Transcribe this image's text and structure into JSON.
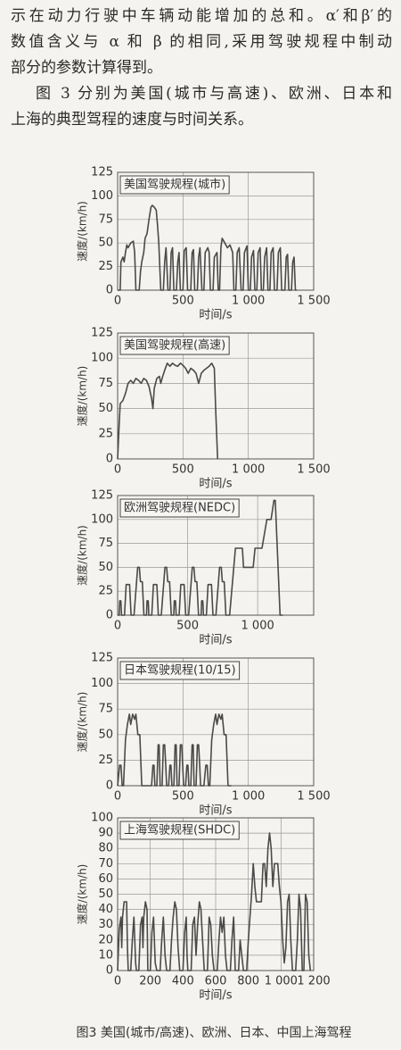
{
  "text_lines": [
    "示在动力行驶中车辆动能增加的总和。α′和β′的",
    "数值含义与 α 和 β 的相同,采用驾驶规程中制动",
    "部分的参数计算得到。",
    "图 3 分别为美国(城市与高速)、欧洲、日本和",
    "上海的典型驾程的速度与时间关系。"
  ],
  "chart_data": [
    {
      "type": "line",
      "title": "美国驾驶规程(城市)",
      "x_label": "时间/s",
      "y_label": "速度/(km/h)",
      "x": [
        0,
        20,
        25,
        40,
        50,
        60,
        70,
        80,
        100,
        120,
        130,
        140,
        165,
        175,
        185,
        200,
        210,
        225,
        240,
        255,
        265,
        280,
        295,
        305,
        315,
        330,
        350,
        360,
        370,
        385,
        400,
        410,
        420,
        430,
        450,
        460,
        470,
        480,
        500,
        510,
        525,
        535,
        560,
        570,
        580,
        590,
        610,
        620,
        630,
        645,
        660,
        670,
        690,
        700,
        710,
        730,
        740,
        760,
        770,
        780,
        790,
        800,
        820,
        840,
        860,
        880,
        890,
        905,
        915,
        930,
        945,
        960,
        970,
        990,
        1000,
        1015,
        1025,
        1040,
        1050,
        1065,
        1075,
        1090,
        1100,
        1115,
        1125,
        1140,
        1150,
        1165,
        1175,
        1190,
        1200,
        1220,
        1230,
        1245,
        1255,
        1280,
        1290,
        1300,
        1310,
        1330,
        1340,
        1350,
        1360,
        1370
      ],
      "series": [
        {
          "color": "#4a4a4a",
          "values": [
            0,
            0,
            30,
            35,
            30,
            40,
            48,
            45,
            50,
            52,
            40,
            0,
            0,
            20,
            30,
            40,
            55,
            60,
            75,
            88,
            90,
            88,
            85,
            70,
            50,
            0,
            0,
            30,
            45,
            0,
            0,
            40,
            45,
            0,
            0,
            30,
            40,
            0,
            0,
            42,
            45,
            0,
            0,
            40,
            43,
            0,
            0,
            35,
            45,
            0,
            0,
            40,
            45,
            40,
            0,
            0,
            35,
            40,
            0,
            0,
            45,
            55,
            50,
            45,
            48,
            40,
            0,
            0,
            40,
            45,
            0,
            0,
            40,
            47,
            0,
            0,
            35,
            42,
            0,
            0,
            40,
            45,
            0,
            0,
            35,
            45,
            0,
            0,
            40,
            45,
            0,
            0,
            40,
            45,
            0,
            0,
            35,
            38,
            0,
            0,
            30,
            35,
            0,
            0
          ]
        }
      ],
      "xlim": [
        0,
        1500
      ],
      "xticks": [
        0,
        500,
        {
          "value": 1000,
          "label": "1 000"
        },
        {
          "value": 1500,
          "label": "1 500"
        }
      ],
      "ylim": [
        0,
        125
      ],
      "yticks": [
        0,
        25,
        50,
        75,
        100,
        125
      ],
      "grid": true
    },
    {
      "type": "line",
      "title": "美国驾驶规程(高速)",
      "x_label": "时间/s",
      "y_label": "速度/(km/h)",
      "x": [
        0,
        10,
        20,
        40,
        60,
        80,
        100,
        120,
        140,
        160,
        180,
        200,
        220,
        240,
        260,
        270,
        280,
        300,
        320,
        330,
        340,
        360,
        380,
        400,
        420,
        440,
        460,
        480,
        500,
        520,
        540,
        560,
        580,
        600,
        620,
        640,
        660,
        680,
        700,
        720,
        740,
        750,
        765
      ],
      "series": [
        {
          "color": "#4a4a4a",
          "values": [
            0,
            30,
            55,
            58,
            65,
            75,
            78,
            75,
            80,
            78,
            75,
            80,
            78,
            72,
            60,
            50,
            70,
            80,
            82,
            75,
            80,
            88,
            95,
            92,
            95,
            93,
            92,
            95,
            93,
            90,
            85,
            90,
            88,
            85,
            75,
            85,
            88,
            90,
            92,
            95,
            90,
            50,
            0
          ]
        }
      ],
      "xlim": [
        0,
        1500
      ],
      "xticks": [
        0,
        500,
        {
          "value": 1000,
          "label": "1 000"
        },
        {
          "value": 1500,
          "label": "1 500"
        }
      ],
      "ylim": [
        0,
        125
      ],
      "yticks": [
        0,
        25,
        50,
        75,
        100,
        125
      ],
      "grid": true
    },
    {
      "type": "line",
      "title": "欧洲驾驶规程(NEDC)",
      "x_label": "时间/s",
      "y_label": "速度/(km/h)",
      "x": [
        0,
        11,
        15,
        23,
        25,
        28,
        49,
        61,
        85,
        96,
        117,
        143,
        155,
        163,
        176,
        188,
        195,
        206,
        210,
        218,
        220,
        223,
        244,
        256,
        280,
        291,
        312,
        338,
        350,
        358,
        371,
        383,
        390,
        401,
        405,
        413,
        415,
        418,
        439,
        451,
        475,
        486,
        507,
        533,
        545,
        553,
        566,
        578,
        585,
        596,
        600,
        608,
        610,
        613,
        634,
        646,
        670,
        681,
        702,
        728,
        740,
        748,
        761,
        773,
        800,
        841,
        891,
        899,
        968,
        981,
        1031,
        1066,
        1096,
        1116,
        1126,
        1160,
        1180
      ],
      "series": [
        {
          "color": "#4a4a4a",
          "values": [
            0,
            0,
            15,
            15,
            10,
            0,
            0,
            32,
            32,
            0,
            0,
            50,
            50,
            35,
            35,
            0,
            0,
            0,
            15,
            15,
            10,
            0,
            0,
            32,
            32,
            0,
            0,
            50,
            50,
            35,
            35,
            0,
            0,
            0,
            15,
            15,
            10,
            0,
            0,
            32,
            32,
            0,
            0,
            50,
            50,
            35,
            35,
            0,
            0,
            0,
            15,
            15,
            10,
            0,
            0,
            32,
            32,
            0,
            0,
            50,
            50,
            35,
            35,
            0,
            0,
            70,
            70,
            50,
            50,
            70,
            70,
            100,
            100,
            120,
            120,
            0,
            0
          ]
        }
      ],
      "xlim": [
        0,
        1400
      ],
      "xticks": [
        0,
        500,
        {
          "value": 1000,
          "label": "1 000"
        }
      ],
      "ylim": [
        0,
        125
      ],
      "yticks": [
        0,
        25,
        50,
        75,
        100,
        125
      ],
      "grid": true
    },
    {
      "type": "line",
      "title": "日本驾驶规程(10/15)",
      "x_label": "时间/s",
      "y_label": "速度/(km/h)",
      "x": [
        0,
        15,
        25,
        35,
        45,
        60,
        75,
        90,
        100,
        115,
        130,
        140,
        155,
        170,
        185,
        210,
        260,
        270,
        278,
        285,
        300,
        310,
        318,
        325,
        340,
        350,
        360,
        368,
        375,
        390,
        400,
        408,
        415,
        430,
        440,
        448,
        455,
        470,
        480,
        490,
        498,
        505,
        520,
        530,
        538,
        545,
        560,
        570,
        578,
        585,
        600,
        610,
        620,
        628,
        635,
        660,
        675,
        685,
        695,
        705,
        720,
        735,
        750,
        760,
        775,
        790,
        800,
        815,
        830,
        845,
        870
      ],
      "series": [
        {
          "color": "#4a4a4a",
          "values": [
            0,
            20,
            20,
            0,
            0,
            45,
            60,
            70,
            60,
            70,
            65,
            70,
            50,
            50,
            0,
            0,
            0,
            20,
            20,
            0,
            0,
            40,
            40,
            0,
            0,
            40,
            40,
            20,
            0,
            0,
            20,
            20,
            0,
            0,
            40,
            40,
            0,
            0,
            40,
            40,
            20,
            0,
            0,
            20,
            20,
            0,
            0,
            40,
            40,
            0,
            0,
            40,
            40,
            20,
            0,
            0,
            20,
            20,
            0,
            0,
            45,
            60,
            70,
            60,
            70,
            65,
            70,
            50,
            50,
            0,
            0
          ]
        }
      ],
      "xlim": [
        0,
        1500
      ],
      "xticks": [
        0,
        500,
        {
          "value": 1000,
          "label": "1 000"
        },
        {
          "value": 1500,
          "label": "1 500"
        }
      ],
      "ylim": [
        0,
        125
      ],
      "yticks": [
        0,
        25,
        50,
        75,
        100,
        125
      ],
      "grid": true
    },
    {
      "type": "line",
      "title": "上海驾驶规程(SHDC)",
      "x_label": "时间/s",
      "y_label": "速度/(km/h)",
      "x": [
        0,
        10,
        20,
        25,
        30,
        40,
        55,
        60,
        65,
        80,
        90,
        100,
        110,
        115,
        130,
        140,
        150,
        155,
        160,
        170,
        180,
        185,
        200,
        210,
        220,
        230,
        240,
        260,
        270,
        280,
        290,
        300,
        320,
        330,
        340,
        350,
        360,
        370,
        380,
        400,
        410,
        420,
        425,
        430,
        450,
        460,
        470,
        480,
        490,
        500,
        510,
        520,
        530,
        550,
        560,
        570,
        580,
        590,
        610,
        620,
        630,
        640,
        650,
        660,
        670,
        690,
        700,
        710,
        720,
        740,
        750,
        760,
        770,
        790,
        800,
        820,
        830,
        840,
        850,
        880,
        890,
        900,
        910,
        920,
        930,
        940,
        950,
        960,
        980,
        990,
        1000,
        1010,
        1020,
        1030,
        1040,
        1050,
        1060,
        1070,
        1090,
        1100,
        1110,
        1120,
        1130,
        1140,
        1150,
        1160,
        1170,
        1180
      ],
      "series": [
        {
          "color": "#4a4a4a",
          "values": [
            0,
            27,
            35,
            15,
            35,
            45,
            45,
            15,
            0,
            0,
            20,
            35,
            5,
            0,
            0,
            30,
            35,
            15,
            35,
            45,
            40,
            0,
            0,
            25,
            35,
            5,
            0,
            0,
            20,
            35,
            10,
            0,
            0,
            20,
            35,
            45,
            40,
            15,
            0,
            0,
            25,
            35,
            10,
            0,
            0,
            30,
            35,
            10,
            30,
            45,
            40,
            20,
            0,
            0,
            35,
            30,
            10,
            0,
            0,
            20,
            35,
            25,
            35,
            10,
            0,
            0,
            20,
            35,
            0,
            0,
            20,
            10,
            0,
            0,
            20,
            50,
            70,
            55,
            45,
            45,
            70,
            70,
            55,
            80,
            90,
            80,
            55,
            70,
            70,
            55,
            45,
            20,
            5,
            15,
            45,
            50,
            20,
            0,
            0,
            20,
            50,
            40,
            0,
            0,
            50,
            45,
            10,
            0
          ]
        }
      ],
      "xlim": [
        0,
        1200
      ],
      "xticks": [
        0,
        200,
        400,
        600,
        800,
        {
          "value": 1000,
          "label": "1 000"
        },
        {
          "value": 1200,
          "label": "1 200"
        }
      ],
      "ylim": [
        0,
        100
      ],
      "yticks": [
        0,
        10,
        20,
        30,
        40,
        50,
        60,
        70,
        80,
        90,
        100
      ],
      "grid": true
    }
  ],
  "caption": "图3 美国(城市/高速)、欧洲、日本、中国上海驾程"
}
